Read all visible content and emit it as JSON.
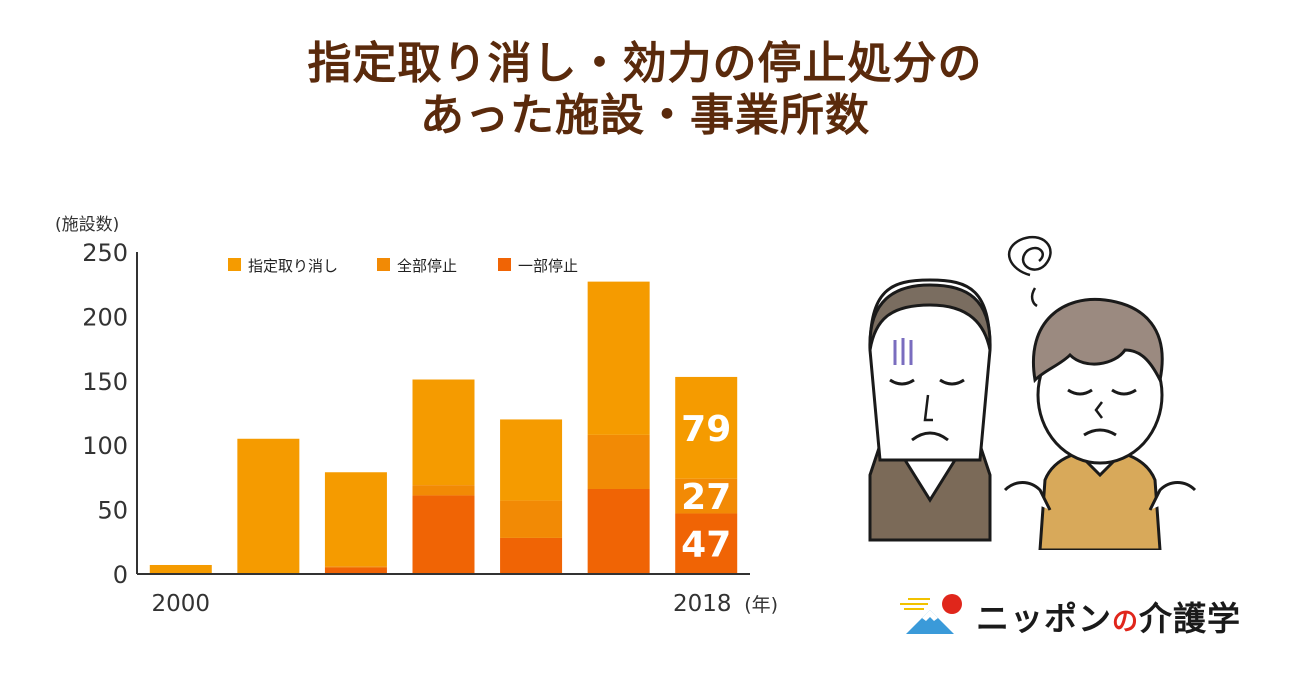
{
  "title": {
    "line1": "指定取り消し・効力の停止処分の",
    "line2": "あった施設・事業所数"
  },
  "brand": {
    "name_part1": "ニッポン",
    "name_no": "の",
    "name_part2": "介護学"
  },
  "colors": {
    "title": "#5a2a0c",
    "revocation": "#f59b00",
    "full_suspension": "#f28a05",
    "partial_suspension": "#f06405",
    "axis": "#333333"
  },
  "chart_data": {
    "type": "bar",
    "stacked": true,
    "ylabel": "(施設数)",
    "x_unit_label": "(年)",
    "ylim": [
      0,
      250
    ],
    "yticks": [
      0,
      50,
      100,
      150,
      200,
      250
    ],
    "x_tick_labels": [
      "2000",
      "2018"
    ],
    "categories": [
      "2000",
      "",
      "",
      "",
      "",
      "",
      "2018"
    ],
    "legend_position": "top-center",
    "series": [
      {
        "name": "一部停止",
        "values": [
          0,
          0,
          5,
          61,
          28,
          66,
          47
        ]
      },
      {
        "name": "全部停止",
        "values": [
          0,
          0,
          1,
          8,
          29,
          42,
          27
        ]
      },
      {
        "name": "指定取り消し",
        "values": [
          7,
          105,
          73,
          82,
          63,
          119,
          79
        ]
      }
    ],
    "legend_order": [
      "指定取り消し",
      "全部停止",
      "一部停止"
    ],
    "data_labels": [
      {
        "category_index": 6,
        "series": "指定取り消し",
        "text": "79"
      },
      {
        "category_index": 6,
        "series": "全部停止",
        "text": "27"
      },
      {
        "category_index": 6,
        "series": "一部停止",
        "text": "47"
      }
    ]
  }
}
